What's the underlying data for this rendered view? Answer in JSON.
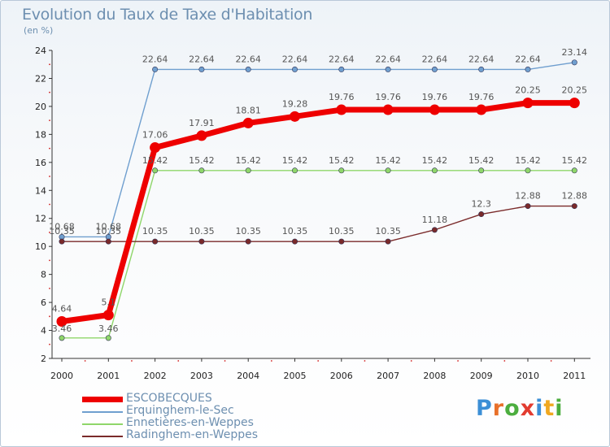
{
  "chart_data": {
    "type": "line",
    "title": "Evolution du Taux de Taxe d'Habitation",
    "unit_label": "(en %)",
    "x": [
      "2000",
      "2001",
      "2002",
      "2003",
      "2004",
      "2005",
      "2006",
      "2007",
      "2008",
      "2009",
      "2010",
      "2011"
    ],
    "ylim": [
      2,
      24
    ],
    "yticks": [
      2,
      4,
      6,
      8,
      10,
      12,
      14,
      16,
      18,
      20,
      22,
      24
    ],
    "grid": false,
    "legend_position": "bottom-left",
    "series": [
      {
        "name": "ESCOBECQUES",
        "color": "#ee0000",
        "values": [
          4.64,
          5.1,
          17.06,
          17.91,
          18.81,
          19.28,
          19.76,
          19.76,
          19.76,
          19.76,
          20.25,
          20.25
        ],
        "labels": [
          "4.64",
          "5.1",
          "17.06",
          "17.91",
          "18.81",
          "19.28",
          "19.76",
          "19.76",
          "19.76",
          "19.76",
          "20.25",
          "20.25"
        ]
      },
      {
        "name": "Erquinghem-le-Sec",
        "color": "#6f9fcf",
        "values": [
          10.68,
          10.68,
          22.64,
          22.64,
          22.64,
          22.64,
          22.64,
          22.64,
          22.64,
          22.64,
          22.64,
          23.14
        ],
        "labels": [
          "10.68",
          "10.68",
          "22.64",
          "22.64",
          "22.64",
          "22.64",
          "22.64",
          "22.64",
          "22.64",
          "22.64",
          "22.64",
          "23.14"
        ]
      },
      {
        "name": "Ennetières-en-Weppes",
        "color": "#8fd66a",
        "values": [
          3.46,
          3.46,
          15.42,
          15.42,
          15.42,
          15.42,
          15.42,
          15.42,
          15.42,
          15.42,
          15.42,
          15.42
        ],
        "labels": [
          "3.46",
          "3.46",
          "15.42",
          "15.42",
          "15.42",
          "15.42",
          "15.42",
          "15.42",
          "15.42",
          "15.42",
          "15.42",
          "15.42"
        ]
      },
      {
        "name": "Radinghem-en-Weppes",
        "color": "#7a2a2a",
        "values": [
          10.35,
          10.35,
          10.35,
          10.35,
          10.35,
          10.35,
          10.35,
          10.35,
          11.18,
          12.3,
          12.88,
          12.88
        ],
        "labels": [
          "10.35",
          "10.35",
          "10.35",
          "10.35",
          "10.35",
          "10.35",
          "10.35",
          "10.35",
          "11.18",
          "12.3",
          "12.88",
          "12.88"
        ]
      }
    ]
  },
  "logo": {
    "letters": [
      "P",
      "r",
      "o",
      "x",
      "i",
      "t",
      "i"
    ],
    "colors": [
      "#3c8fd6",
      "#e8702a",
      "#4cae3f",
      "#e23b2f",
      "#3c8fd6",
      "#f0a820",
      "#4cae3f"
    ]
  }
}
